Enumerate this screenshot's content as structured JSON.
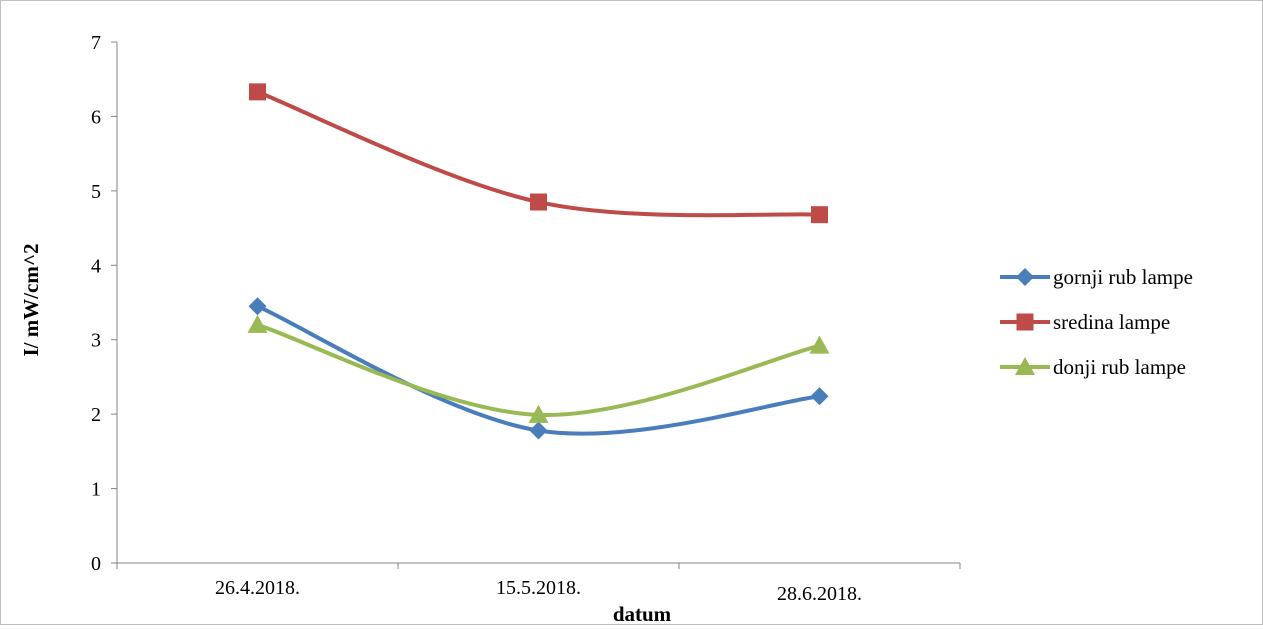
{
  "chart_data": {
    "type": "line",
    "title": "",
    "xlabel": "datum",
    "ylabel": "I/ mW/cm^2",
    "categories": [
      "26.4.2018.",
      "15.5.2018.",
      "28.6.2018."
    ],
    "ylim": [
      0,
      7
    ],
    "yticks": [
      "0",
      "1",
      "2",
      "3",
      "4",
      "5",
      "6",
      "7"
    ],
    "grid": false,
    "smooth": true,
    "legend_position": "right",
    "series": [
      {
        "name": "gornji rub lampe",
        "values": [
          3.45,
          1.78,
          2.24
        ],
        "color": "#4a7ebb",
        "marker": "diamond"
      },
      {
        "name": "sredina lampe",
        "values": [
          6.33,
          4.85,
          4.68
        ],
        "color": "#be4b48",
        "marker": "square"
      },
      {
        "name": "donji rub lampe",
        "values": [
          3.2,
          1.99,
          2.92
        ],
        "color": "#98b954",
        "marker": "triangle"
      }
    ]
  }
}
